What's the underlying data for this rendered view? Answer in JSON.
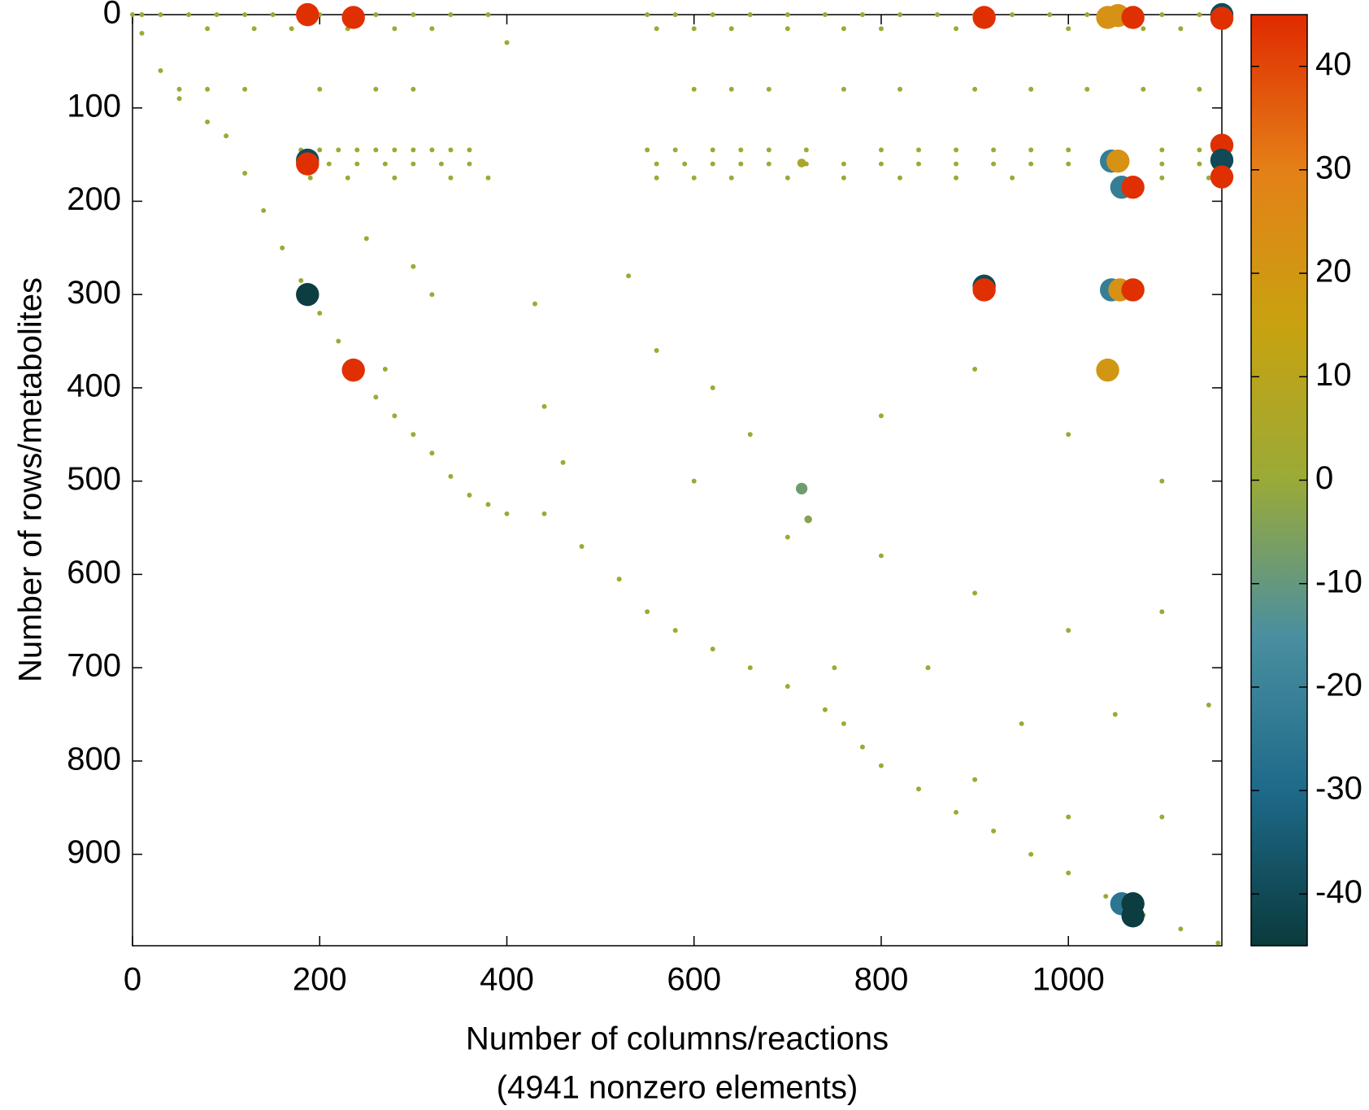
{
  "chart_data": {
    "type": "scatter",
    "xlabel": "Number of columns/reactions",
    "note": "(4941 nonzero elements)",
    "ylabel": "Number of rows/metabolites",
    "xlim": [
      0,
      1164
    ],
    "ylim": [
      998,
      0
    ],
    "xticks": [
      0,
      200,
      400,
      600,
      800,
      1000
    ],
    "yticks": [
      0,
      100,
      200,
      300,
      400,
      500,
      600,
      700,
      800,
      900
    ],
    "colorbar": {
      "lim": [
        -45,
        45
      ],
      "ticks": [
        -40,
        -30,
        -20,
        -10,
        0,
        10,
        20,
        30,
        40
      ],
      "colormap": [
        "#0a3a3c",
        "#1e6a8a",
        "#4a8fa0",
        "#9aaa38",
        "#c8a210",
        "#e48018",
        "#e02a00"
      ]
    },
    "series": [
      {
        "name": "nonzero elements",
        "x": [
          10,
          30,
          60,
          90,
          120,
          150,
          200,
          260,
          300,
          340,
          380,
          550,
          580,
          620,
          660,
          700,
          740,
          780,
          820,
          860,
          900,
          940,
          980,
          1020,
          1100,
          1140,
          80,
          130,
          170,
          230,
          280,
          320,
          560,
          600,
          640,
          700,
          760,
          800,
          880,
          1000,
          1080,
          1120,
          50,
          80,
          120,
          200,
          260,
          300,
          600,
          640,
          680,
          760,
          820,
          900,
          960,
          1020,
          1080,
          1140,
          180,
          200,
          220,
          240,
          260,
          280,
          300,
          320,
          340,
          360,
          550,
          580,
          620,
          650,
          680,
          720,
          800,
          840,
          880,
          920,
          960,
          1000,
          1100,
          1140,
          180,
          210,
          240,
          270,
          300,
          330,
          360,
          560,
          590,
          620,
          650,
          680,
          720,
          760,
          800,
          840,
          880,
          920,
          960,
          1000,
          1100,
          1140,
          190,
          230,
          280,
          340,
          380,
          560,
          600,
          640,
          700,
          760,
          820,
          880,
          940,
          1100,
          1150,
          0,
          10,
          30,
          50,
          80,
          100,
          120,
          140,
          160,
          180,
          200,
          220,
          240,
          260,
          280,
          300,
          320,
          340,
          360,
          380,
          400,
          440,
          480,
          520,
          550,
          580,
          620,
          660,
          700,
          740,
          760,
          780,
          800,
          840,
          880,
          920,
          960,
          1000,
          1040,
          1080,
          1120,
          1160,
          250,
          300,
          320,
          270,
          430,
          440,
          460,
          530,
          560,
          620,
          660,
          600,
          700,
          800,
          900,
          1000,
          1100,
          800,
          900,
          1000,
          1100,
          750,
          850,
          950,
          1050,
          1150,
          900,
          1000,
          1100,
          400,
          715,
          715,
          722,
          187,
          236,
          910,
          1042,
          1053,
          1069,
          1164,
          1164,
          187,
          187,
          187,
          236,
          910,
          910,
          1042,
          1046,
          1055,
          1069,
          1046,
          1053,
          1057,
          1069,
          1164,
          1164,
          1164,
          1057,
          1069,
          1069
        ],
        "y": [
          0,
          0,
          0,
          0,
          0,
          0,
          0,
          0,
          0,
          0,
          0,
          0,
          0,
          0,
          0,
          0,
          0,
          0,
          0,
          0,
          0,
          0,
          0,
          0,
          0,
          0,
          15,
          15,
          15,
          15,
          15,
          15,
          15,
          15,
          15,
          15,
          15,
          15,
          15,
          15,
          15,
          15,
          80,
          80,
          80,
          80,
          80,
          80,
          80,
          80,
          80,
          80,
          80,
          80,
          80,
          80,
          80,
          80,
          145,
          145,
          145,
          145,
          145,
          145,
          145,
          145,
          145,
          145,
          145,
          145,
          145,
          145,
          145,
          145,
          145,
          145,
          145,
          145,
          145,
          145,
          145,
          145,
          160,
          160,
          160,
          160,
          160,
          160,
          160,
          160,
          160,
          160,
          160,
          160,
          160,
          160,
          160,
          160,
          160,
          160,
          160,
          160,
          160,
          160,
          175,
          175,
          175,
          175,
          175,
          175,
          175,
          175,
          175,
          175,
          175,
          175,
          175,
          175,
          175,
          0,
          20,
          60,
          90,
          115,
          130,
          170,
          210,
          250,
          285,
          320,
          350,
          380,
          410,
          430,
          450,
          470,
          495,
          515,
          525,
          535,
          535,
          570,
          605,
          640,
          660,
          680,
          700,
          720,
          745,
          760,
          785,
          805,
          830,
          855,
          875,
          900,
          920,
          945,
          965,
          980,
          995,
          240,
          270,
          300,
          380,
          310,
          420,
          480,
          280,
          360,
          400,
          450,
          500,
          560,
          430,
          380,
          450,
          500,
          580,
          620,
          660,
          640,
          700,
          700,
          760,
          750,
          740,
          820,
          860,
          860,
          30,
          159,
          508,
          541,
          0,
          3,
          3,
          3,
          1,
          3,
          0,
          4,
          156,
          160,
          300,
          381,
          291,
          295,
          381,
          295,
          295,
          295,
          157,
          157,
          185,
          185,
          140,
          156,
          174,
          953,
          953,
          966
        ],
        "values": [
          1,
          1,
          1,
          1,
          1,
          1,
          1,
          1,
          1,
          1,
          1,
          1,
          1,
          1,
          1,
          1,
          1,
          1,
          1,
          1,
          1,
          1,
          1,
          1,
          1,
          1,
          1,
          1,
          1,
          1,
          1,
          1,
          1,
          1,
          1,
          1,
          1,
          1,
          1,
          1,
          1,
          1,
          1,
          1,
          1,
          1,
          1,
          1,
          1,
          1,
          1,
          1,
          1,
          1,
          1,
          1,
          1,
          1,
          1,
          1,
          1,
          1,
          1,
          1,
          1,
          1,
          1,
          1,
          1,
          1,
          1,
          1,
          1,
          1,
          1,
          1,
          1,
          1,
          1,
          1,
          1,
          1,
          1,
          1,
          1,
          1,
          1,
          1,
          1,
          1,
          1,
          1,
          1,
          1,
          1,
          1,
          1,
          1,
          1,
          1,
          1,
          1,
          1,
          1,
          1,
          1,
          1,
          1,
          1,
          1,
          1,
          1,
          1,
          1,
          1,
          1,
          1,
          1,
          1,
          1,
          1,
          1,
          1,
          1,
          1,
          1,
          1,
          1,
          1,
          1,
          1,
          1,
          1,
          1,
          1,
          1,
          1,
          1,
          1,
          1,
          1,
          1,
          1,
          1,
          1,
          1,
          1,
          1,
          1,
          1,
          1,
          1,
          1,
          1,
          1,
          1,
          1,
          1,
          1,
          1,
          1,
          1,
          1,
          1,
          1,
          1,
          1,
          1,
          1,
          1,
          1,
          1,
          1,
          1,
          1,
          1,
          1,
          1,
          1,
          1,
          1,
          1,
          1,
          1,
          1,
          1,
          1,
          1,
          1,
          1,
          1,
          5,
          -8,
          -4,
          44,
          44,
          44,
          22,
          22,
          44,
          -40,
          44,
          -40,
          44,
          -44,
          44,
          -40,
          44,
          20,
          -22,
          22,
          44,
          -22,
          22,
          -22,
          44,
          44,
          -40,
          44,
          -25,
          -44,
          -44
        ]
      }
    ]
  }
}
